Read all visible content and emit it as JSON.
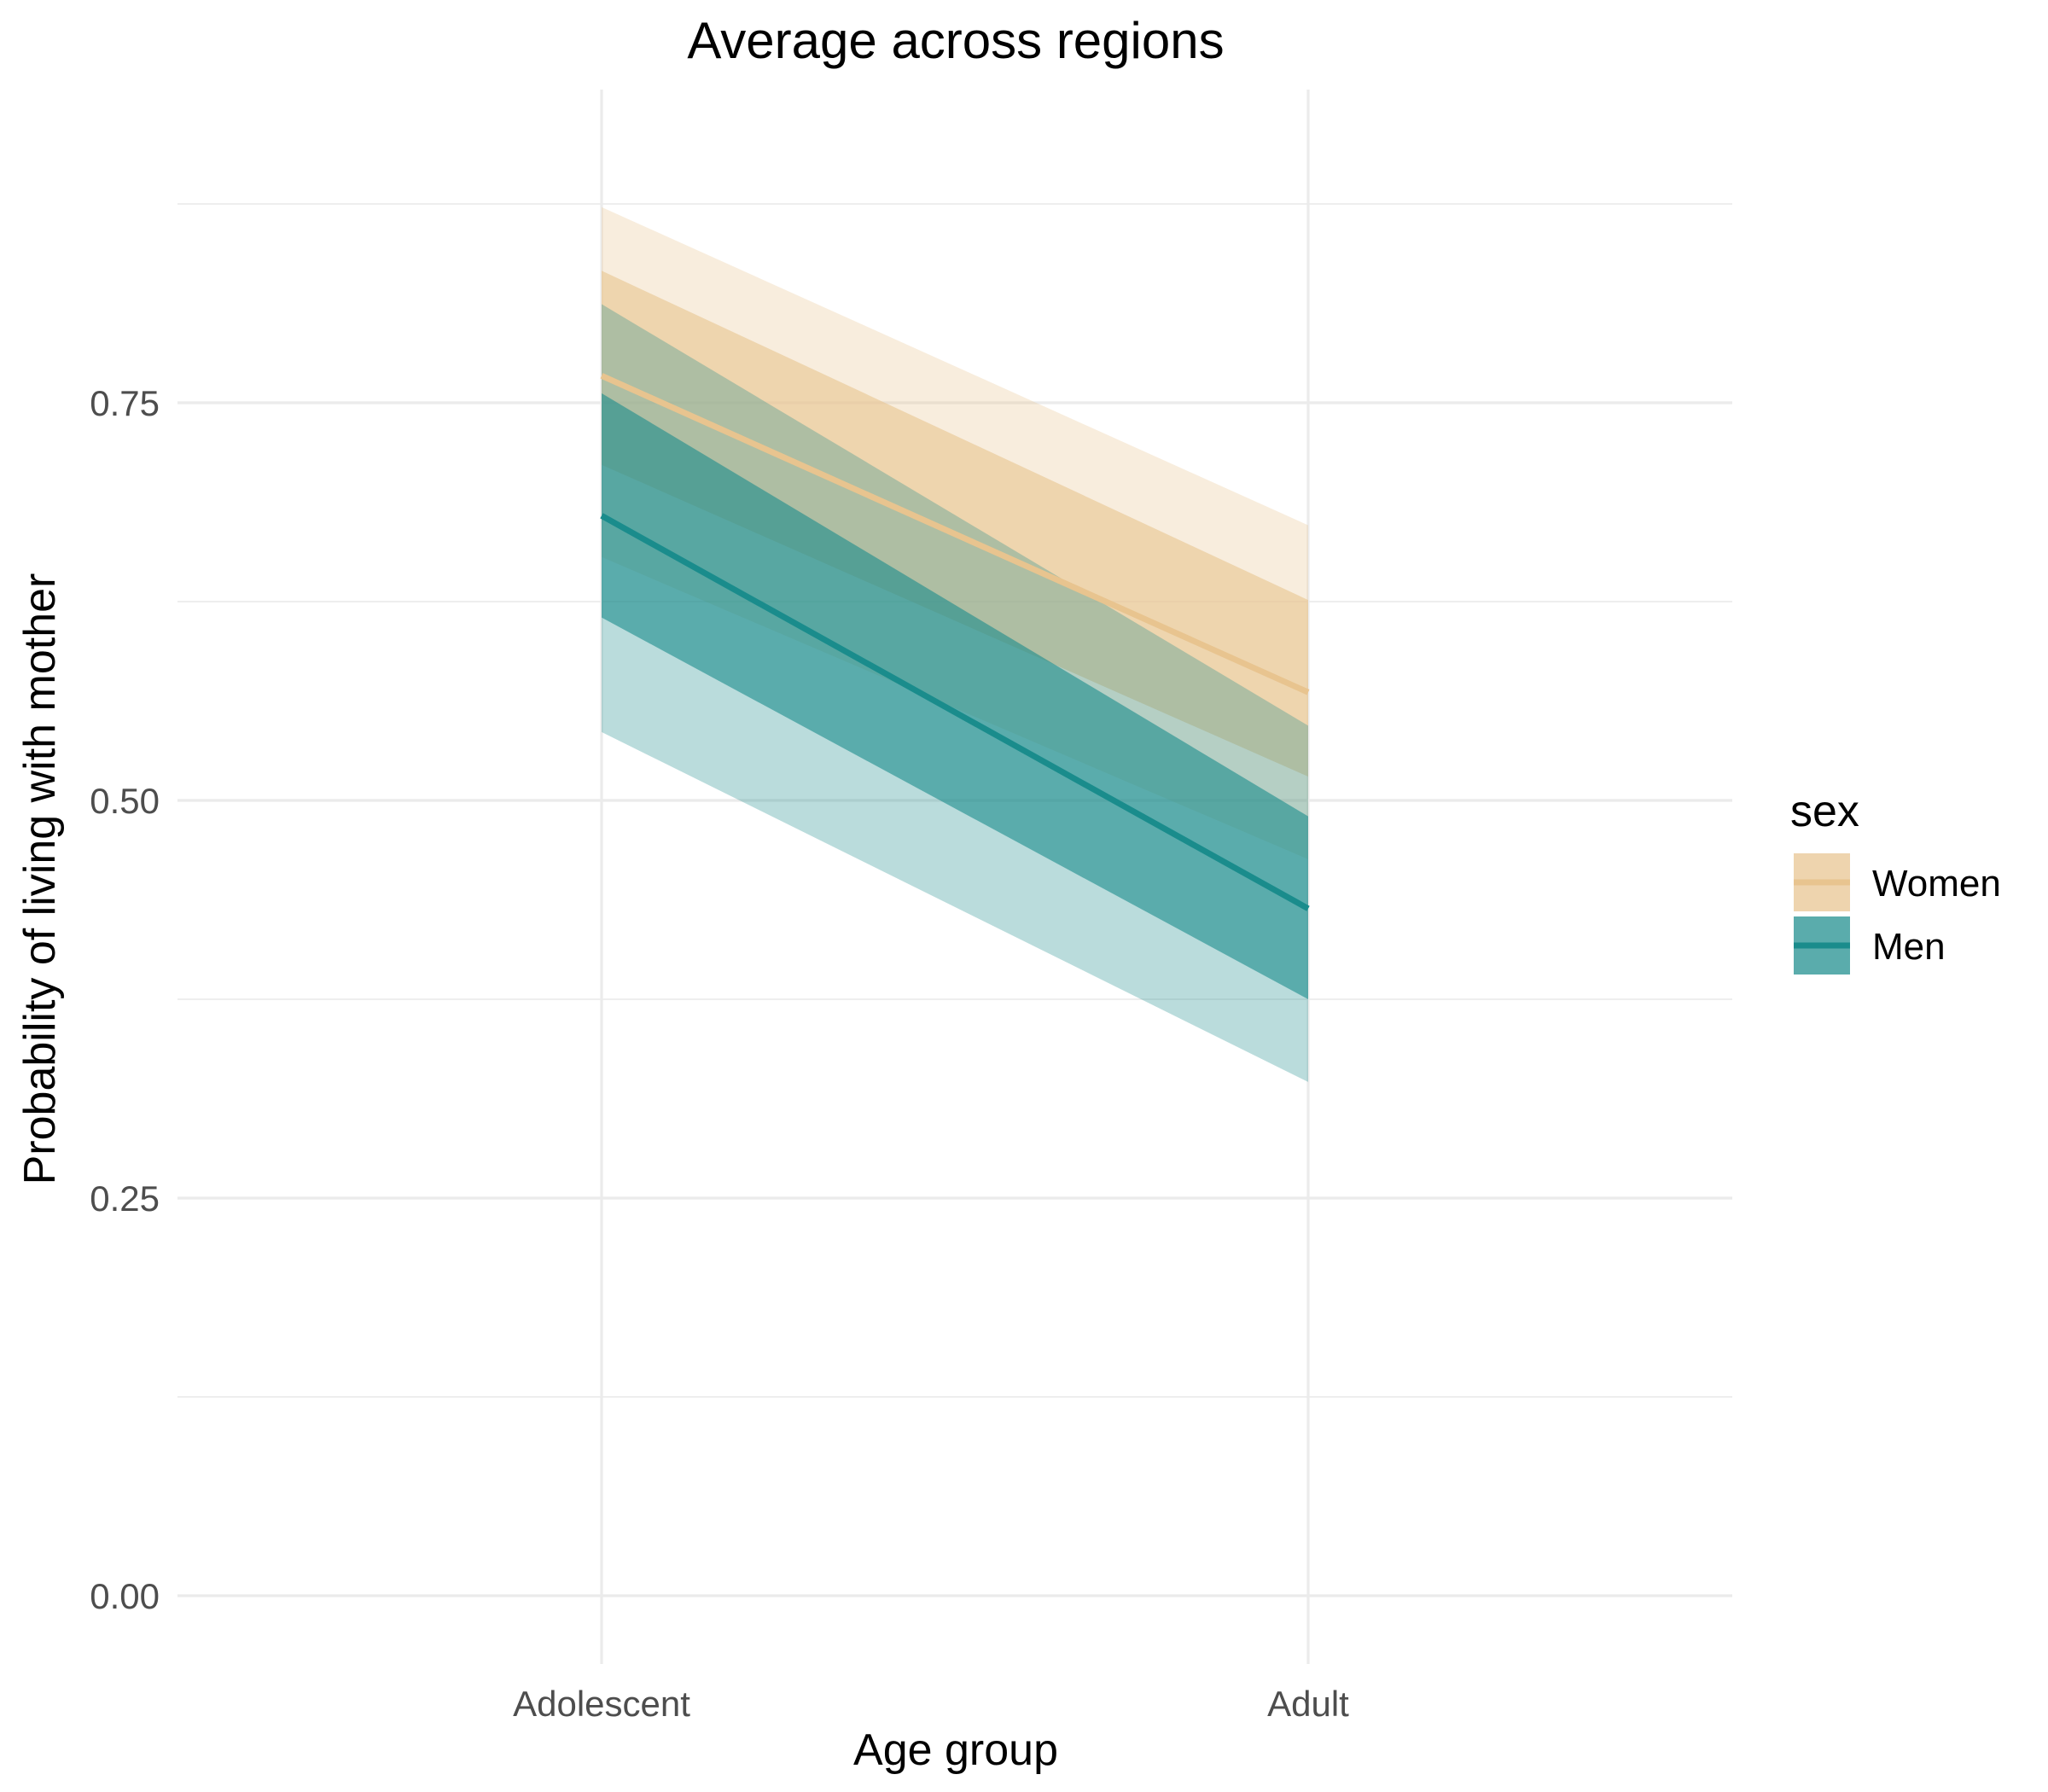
{
  "chart_data": {
    "type": "line",
    "title": "Average across regions",
    "xlabel": "Age group",
    "ylabel": "Probability of living with mother",
    "categories": [
      "Adolescent",
      "Adult"
    ],
    "ylim": [
      -0.04,
      0.95
    ],
    "yticks": [
      0.0,
      0.25,
      0.5,
      0.75
    ],
    "ytick_labels": [
      "0.00",
      "0.25",
      "0.50",
      "0.75"
    ],
    "grid": true,
    "legend": {
      "title": "sex",
      "position": "right"
    },
    "series": [
      {
        "name": "Women",
        "color": "#e8c48f",
        "values": [
          0.767,
          0.568
        ],
        "inner_band": {
          "lower": [
            0.711,
            0.515
          ],
          "upper": [
            0.833,
            0.626
          ]
        },
        "outer_band": {
          "lower": [
            0.653,
            0.463
          ],
          "upper": [
            0.873,
            0.673
          ]
        }
      },
      {
        "name": "Men",
        "color": "#1a8c8c",
        "values": [
          0.679,
          0.432
        ],
        "inner_band": {
          "lower": [
            0.615,
            0.375
          ],
          "upper": [
            0.756,
            0.49
          ]
        },
        "outer_band": {
          "lower": [
            0.543,
            0.323
          ],
          "upper": [
            0.812,
            0.547
          ]
        }
      }
    ]
  }
}
